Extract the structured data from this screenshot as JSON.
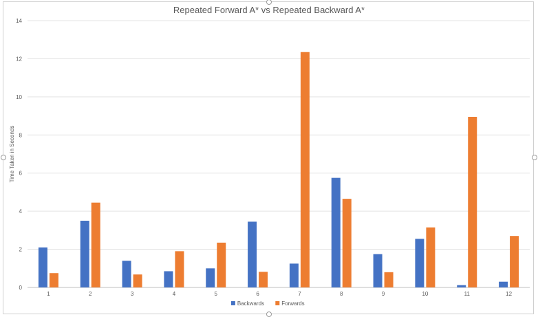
{
  "chart_data": {
    "type": "bar",
    "title": "Repeated Forward A* vs Repeated Backward A*",
    "xlabel": "",
    "ylabel": "Time Taken in Seconds",
    "ylim": [
      0,
      14
    ],
    "yticks": [
      0,
      2,
      4,
      6,
      8,
      10,
      12,
      14
    ],
    "categories": [
      "1",
      "2",
      "3",
      "4",
      "5",
      "6",
      "7",
      "8",
      "9",
      "10",
      "11",
      "12"
    ],
    "series": [
      {
        "name": "Backwards",
        "color": "#4472C4",
        "values": [
          2.1,
          3.5,
          1.4,
          0.85,
          1.0,
          3.45,
          1.25,
          5.75,
          1.75,
          2.55,
          0.12,
          0.3
        ]
      },
      {
        "name": "Forwards",
        "color": "#ED7D31",
        "values": [
          0.75,
          4.45,
          0.68,
          1.9,
          2.35,
          0.82,
          12.35,
          4.65,
          0.8,
          3.15,
          8.95,
          2.7
        ]
      }
    ],
    "grid": true,
    "legend_position": "bottom"
  }
}
